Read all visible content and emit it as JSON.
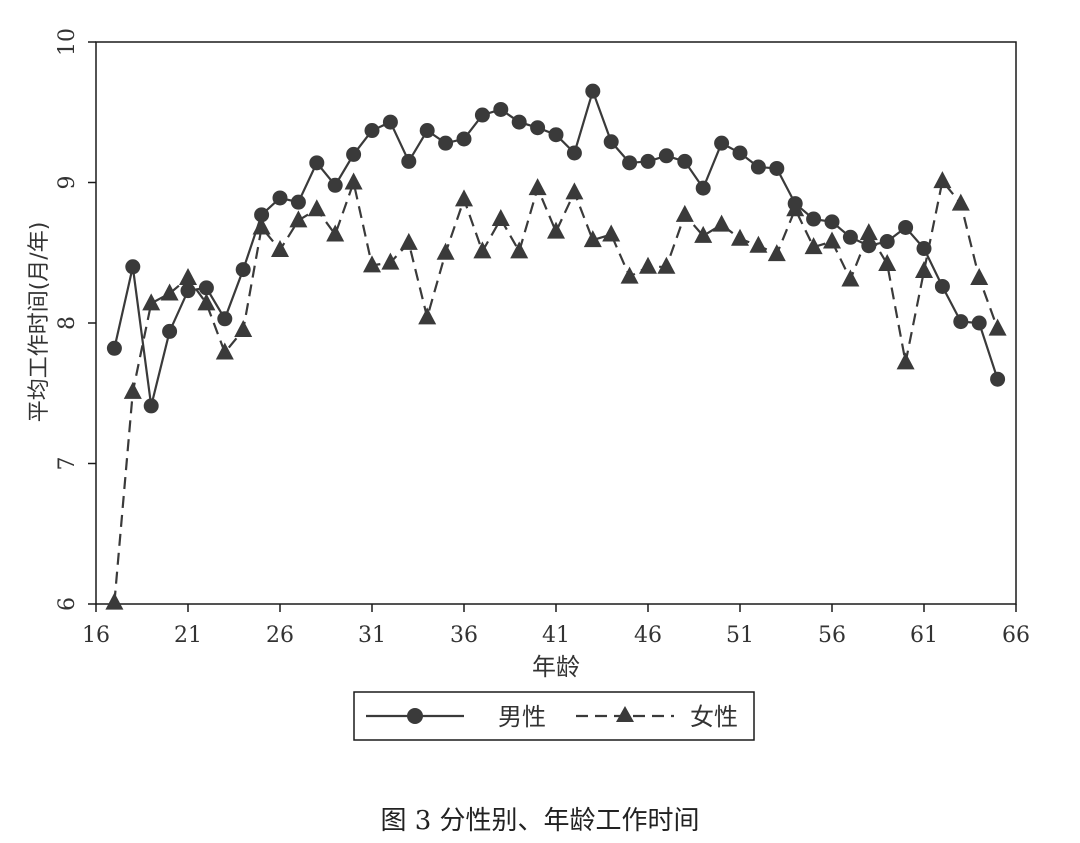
{
  "chart_data": {
    "type": "line",
    "title": "",
    "xlabel": "年龄",
    "ylabel": "平均工作时间(月/年)",
    "xlim": [
      16,
      66
    ],
    "ylim": [
      6,
      10
    ],
    "xticks": [
      "16",
      "21",
      "26",
      "31",
      "36",
      "41",
      "46",
      "51",
      "56",
      "61",
      "66"
    ],
    "yticks": [
      "6",
      "7",
      "8",
      "9",
      "10"
    ],
    "grid": false,
    "legend": "bottom",
    "x": [
      17,
      18,
      19,
      20,
      21,
      22,
      23,
      24,
      25,
      26,
      27,
      28,
      29,
      30,
      31,
      32,
      33,
      34,
      35,
      36,
      37,
      38,
      39,
      40,
      41,
      42,
      43,
      44,
      45,
      46,
      47,
      48,
      49,
      50,
      51,
      52,
      53,
      54,
      55,
      56,
      57,
      58,
      59,
      60,
      61,
      62,
      63,
      64,
      65
    ],
    "series": [
      {
        "name": "男性",
        "marker": "circle",
        "line": "solid",
        "values": [
          7.82,
          8.4,
          7.41,
          7.94,
          8.23,
          8.25,
          8.03,
          8.38,
          8.77,
          8.89,
          8.86,
          9.14,
          8.98,
          9.2,
          9.37,
          9.43,
          9.15,
          9.37,
          9.28,
          9.31,
          9.48,
          9.52,
          9.43,
          9.39,
          9.34,
          9.21,
          9.65,
          9.29,
          9.14,
          9.15,
          9.19,
          9.15,
          8.96,
          9.28,
          9.21,
          9.11,
          9.1,
          8.85,
          8.74,
          8.72,
          8.61,
          8.55,
          8.58,
          8.68,
          8.53,
          8.26,
          8.01,
          8.0,
          7.6
        ]
      },
      {
        "name": "女性",
        "marker": "triangle",
        "line": "dashed",
        "values": [
          6.01,
          7.51,
          8.14,
          8.21,
          8.32,
          8.14,
          7.79,
          7.95,
          8.68,
          8.52,
          8.73,
          8.81,
          8.63,
          9.0,
          8.41,
          8.43,
          8.57,
          8.04,
          8.5,
          8.88,
          8.51,
          8.74,
          8.51,
          8.96,
          8.65,
          8.93,
          8.59,
          8.63,
          8.33,
          8.4,
          8.4,
          8.77,
          8.62,
          8.7,
          8.6,
          8.55,
          8.49,
          8.81,
          8.54,
          8.58,
          8.31,
          8.64,
          8.42,
          7.72,
          8.37,
          9.01,
          8.85,
          8.32,
          7.96
        ]
      }
    ]
  },
  "legend_box": {
    "male": "男性",
    "female": "女性"
  },
  "caption": "图 3  分性别、年龄工作时间",
  "colors": {
    "line": "#3a3a3a",
    "axis": "#1a1a1a",
    "text": "#333333"
  }
}
